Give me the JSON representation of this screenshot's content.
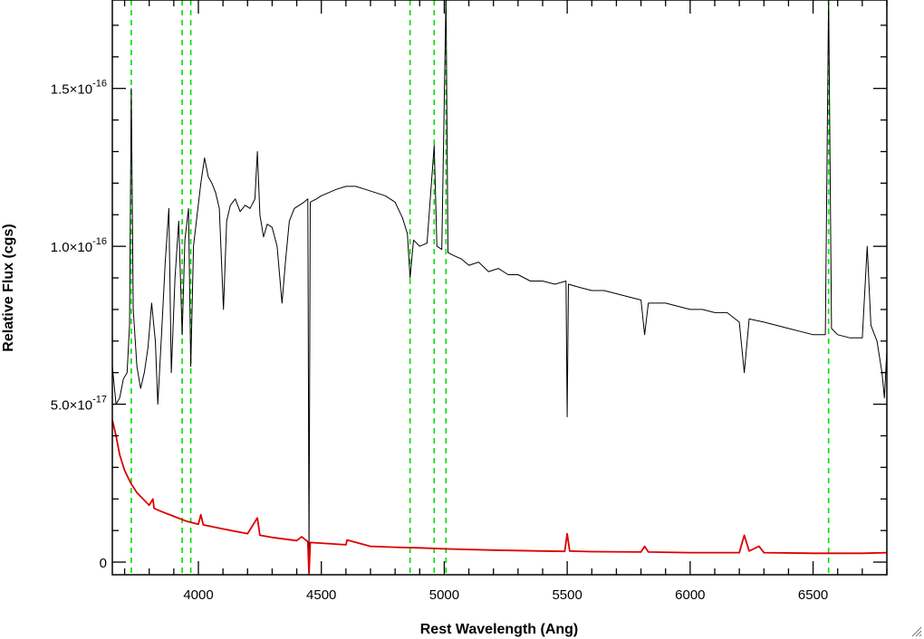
{
  "chart_data": {
    "type": "line",
    "xlabel": "Rest Wavelength (Ang)",
    "ylabel": "Relative Flux (cgs)",
    "xlim": [
      3650,
      6800
    ],
    "ylim": [
      -4e-18,
      1.78e-16
    ],
    "x_ticks": [
      {
        "value": 4000,
        "label": "4000"
      },
      {
        "value": 4500,
        "label": "4500"
      },
      {
        "value": 5000,
        "label": "5000"
      },
      {
        "value": 5500,
        "label": "5500"
      },
      {
        "value": 6000,
        "label": "6000"
      },
      {
        "value": 6500,
        "label": "6500"
      }
    ],
    "y_ticks": [
      {
        "value": 0,
        "mantissa": "0",
        "exponent": ""
      },
      {
        "value": 5e-17,
        "mantissa": "5.0×10",
        "exponent": "-17"
      },
      {
        "value": 1e-16,
        "mantissa": "1.0×10",
        "exponent": "-16"
      },
      {
        "value": 1.5e-16,
        "mantissa": "1.5×10",
        "exponent": "-16"
      }
    ],
    "grid": false,
    "vertical_lines": {
      "color": "#00dd00",
      "style": "dashed",
      "x": [
        3727,
        3934,
        3969,
        4861,
        4959,
        5007,
        6563
      ]
    },
    "series": [
      {
        "color": "#000000",
        "points": [
          [
            3650,
            6.2e-17
          ],
          [
            3665,
            5e-17
          ],
          [
            3680,
            5.2e-17
          ],
          [
            3695,
            5.8e-17
          ],
          [
            3710,
            6e-17
          ],
          [
            3720,
            7.5e-17
          ],
          [
            3727,
            1.5e-16
          ],
          [
            3735,
            8e-17
          ],
          [
            3750,
            6.2e-17
          ],
          [
            3765,
            5.5e-17
          ],
          [
            3780,
            6e-17
          ],
          [
            3795,
            6.8e-17
          ],
          [
            3810,
            8.2e-17
          ],
          [
            3825,
            7e-17
          ],
          [
            3835,
            5e-17
          ],
          [
            3850,
            7.2e-17
          ],
          [
            3865,
            9.5e-17
          ],
          [
            3880,
            1.12e-16
          ],
          [
            3890,
            6e-17
          ],
          [
            3905,
            9e-17
          ],
          [
            3920,
            1.08e-16
          ],
          [
            3934,
            7.2e-17
          ],
          [
            3945,
            1.02e-16
          ],
          [
            3960,
            1.12e-16
          ],
          [
            3969,
            6.2e-17
          ],
          [
            3980,
            1e-16
          ],
          [
            3995,
            1.1e-16
          ],
          [
            4010,
            1.2e-16
          ],
          [
            4025,
            1.28e-16
          ],
          [
            4040,
            1.22e-16
          ],
          [
            4055,
            1.2e-16
          ],
          [
            4070,
            1.17e-16
          ],
          [
            4085,
            1.12e-16
          ],
          [
            4102,
            8e-17
          ],
          [
            4115,
            1.08e-16
          ],
          [
            4130,
            1.13e-16
          ],
          [
            4150,
            1.15e-16
          ],
          [
            4170,
            1.11e-16
          ],
          [
            4190,
            1.13e-16
          ],
          [
            4210,
            1.12e-16
          ],
          [
            4230,
            1.15e-16
          ],
          [
            4240,
            1.3e-16
          ],
          [
            4250,
            1.1e-16
          ],
          [
            4265,
            1.03e-16
          ],
          [
            4280,
            1.07e-16
          ],
          [
            4300,
            1.06e-16
          ],
          [
            4320,
            1e-16
          ],
          [
            4340,
            8.2e-17
          ],
          [
            4355,
            9.6e-17
          ],
          [
            4370,
            1.08e-16
          ],
          [
            4390,
            1.12e-16
          ],
          [
            4410,
            1.13e-16
          ],
          [
            4430,
            1.14e-16
          ],
          [
            4445,
            1.15e-16
          ],
          [
            4450,
            2e-18
          ],
          [
            4455,
            1.14e-16
          ],
          [
            4480,
            1.15e-16
          ],
          [
            4500,
            1.16e-16
          ],
          [
            4530,
            1.17e-16
          ],
          [
            4560,
            1.18e-16
          ],
          [
            4600,
            1.19e-16
          ],
          [
            4640,
            1.19e-16
          ],
          [
            4680,
            1.18e-16
          ],
          [
            4720,
            1.17e-16
          ],
          [
            4760,
            1.16e-16
          ],
          [
            4800,
            1.14e-16
          ],
          [
            4830,
            1.09e-16
          ],
          [
            4850,
            1.04e-16
          ],
          [
            4861,
            9e-17
          ],
          [
            4875,
            1.02e-16
          ],
          [
            4900,
            1e-16
          ],
          [
            4930,
            1.01e-16
          ],
          [
            4959,
            1.32e-16
          ],
          [
            4970,
            1e-16
          ],
          [
            4990,
            9.9e-17
          ],
          [
            5007,
            1.79e-16
          ],
          [
            5015,
            9.8e-17
          ],
          [
            5040,
            9.7e-17
          ],
          [
            5070,
            9.6e-17
          ],
          [
            5100,
            9.4e-17
          ],
          [
            5140,
            9.5e-17
          ],
          [
            5180,
            9.2e-17
          ],
          [
            5220,
            9.3e-17
          ],
          [
            5260,
            9.1e-17
          ],
          [
            5300,
            9.1e-17
          ],
          [
            5350,
            8.9e-17
          ],
          [
            5400,
            8.9e-17
          ],
          [
            5450,
            8.8e-17
          ],
          [
            5495,
            8.9e-17
          ],
          [
            5500,
            4.6e-17
          ],
          [
            5505,
            8.8e-17
          ],
          [
            5550,
            8.7e-17
          ],
          [
            5600,
            8.6e-17
          ],
          [
            5650,
            8.6e-17
          ],
          [
            5700,
            8.5e-17
          ],
          [
            5750,
            8.4e-17
          ],
          [
            5800,
            8.3e-17
          ],
          [
            5815,
            7.2e-17
          ],
          [
            5830,
            8.2e-17
          ],
          [
            5900,
            8.2e-17
          ],
          [
            5950,
            8.1e-17
          ],
          [
            6000,
            8e-17
          ],
          [
            6050,
            8e-17
          ],
          [
            6100,
            7.9e-17
          ],
          [
            6150,
            7.9e-17
          ],
          [
            6200,
            7.6e-17
          ],
          [
            6220,
            6e-17
          ],
          [
            6240,
            7.7e-17
          ],
          [
            6300,
            7.6e-17
          ],
          [
            6350,
            7.5e-17
          ],
          [
            6400,
            7.4e-17
          ],
          [
            6450,
            7.3e-17
          ],
          [
            6500,
            7.2e-17
          ],
          [
            6550,
            7.2e-17
          ],
          [
            6563,
            1.79e-16
          ],
          [
            6575,
            7.4e-17
          ],
          [
            6600,
            7.2e-17
          ],
          [
            6650,
            7.1e-17
          ],
          [
            6700,
            7.1e-17
          ],
          [
            6720,
            1e-16
          ],
          [
            6735,
            7.5e-17
          ],
          [
            6760,
            7e-17
          ],
          [
            6780,
            6e-17
          ],
          [
            6790,
            5.2e-17
          ],
          [
            6800,
            6.7e-17
          ]
        ]
      },
      {
        "color": "#dd0000",
        "points": [
          [
            3650,
            4.5e-17
          ],
          [
            3665,
            4e-17
          ],
          [
            3680,
            3.4e-17
          ],
          [
            3700,
            2.9e-17
          ],
          [
            3725,
            2.5e-17
          ],
          [
            3750,
            2.2e-17
          ],
          [
            3775,
            2e-17
          ],
          [
            3800,
            1.8e-17
          ],
          [
            3815,
            2e-17
          ],
          [
            3820,
            1.7e-17
          ],
          [
            3850,
            1.6e-17
          ],
          [
            3900,
            1.45e-17
          ],
          [
            3950,
            1.3e-17
          ],
          [
            4000,
            1.2e-17
          ],
          [
            4010,
            1.5e-17
          ],
          [
            4020,
            1.18e-17
          ],
          [
            4100,
            1.05e-17
          ],
          [
            4200,
            9e-18
          ],
          [
            4240,
            1.4e-17
          ],
          [
            4250,
            8.5e-18
          ],
          [
            4300,
            7.8e-18
          ],
          [
            4400,
            6.8e-18
          ],
          [
            4420,
            8e-18
          ],
          [
            4445,
            6.5e-18
          ],
          [
            4450,
            -4e-18
          ],
          [
            4455,
            6.2e-18
          ],
          [
            4500,
            6e-18
          ],
          [
            4600,
            5.5e-18
          ],
          [
            4605,
            7e-18
          ],
          [
            4700,
            5e-18
          ],
          [
            4800,
            4.7e-18
          ],
          [
            4900,
            4.5e-18
          ],
          [
            5000,
            4.2e-18
          ],
          [
            5200,
            3.8e-18
          ],
          [
            5400,
            3.5e-18
          ],
          [
            5490,
            3.4e-18
          ],
          [
            5500,
            9e-18
          ],
          [
            5510,
            3.5e-18
          ],
          [
            5600,
            3.3e-18
          ],
          [
            5800,
            3.2e-18
          ],
          [
            5815,
            5e-18
          ],
          [
            5830,
            3.2e-18
          ],
          [
            6000,
            3e-18
          ],
          [
            6200,
            3e-18
          ],
          [
            6220,
            8.5e-18
          ],
          [
            6240,
            3.5e-18
          ],
          [
            6280,
            5e-18
          ],
          [
            6300,
            3e-18
          ],
          [
            6500,
            2.8e-18
          ],
          [
            6700,
            2.8e-18
          ],
          [
            6800,
            3e-18
          ]
        ]
      }
    ]
  }
}
